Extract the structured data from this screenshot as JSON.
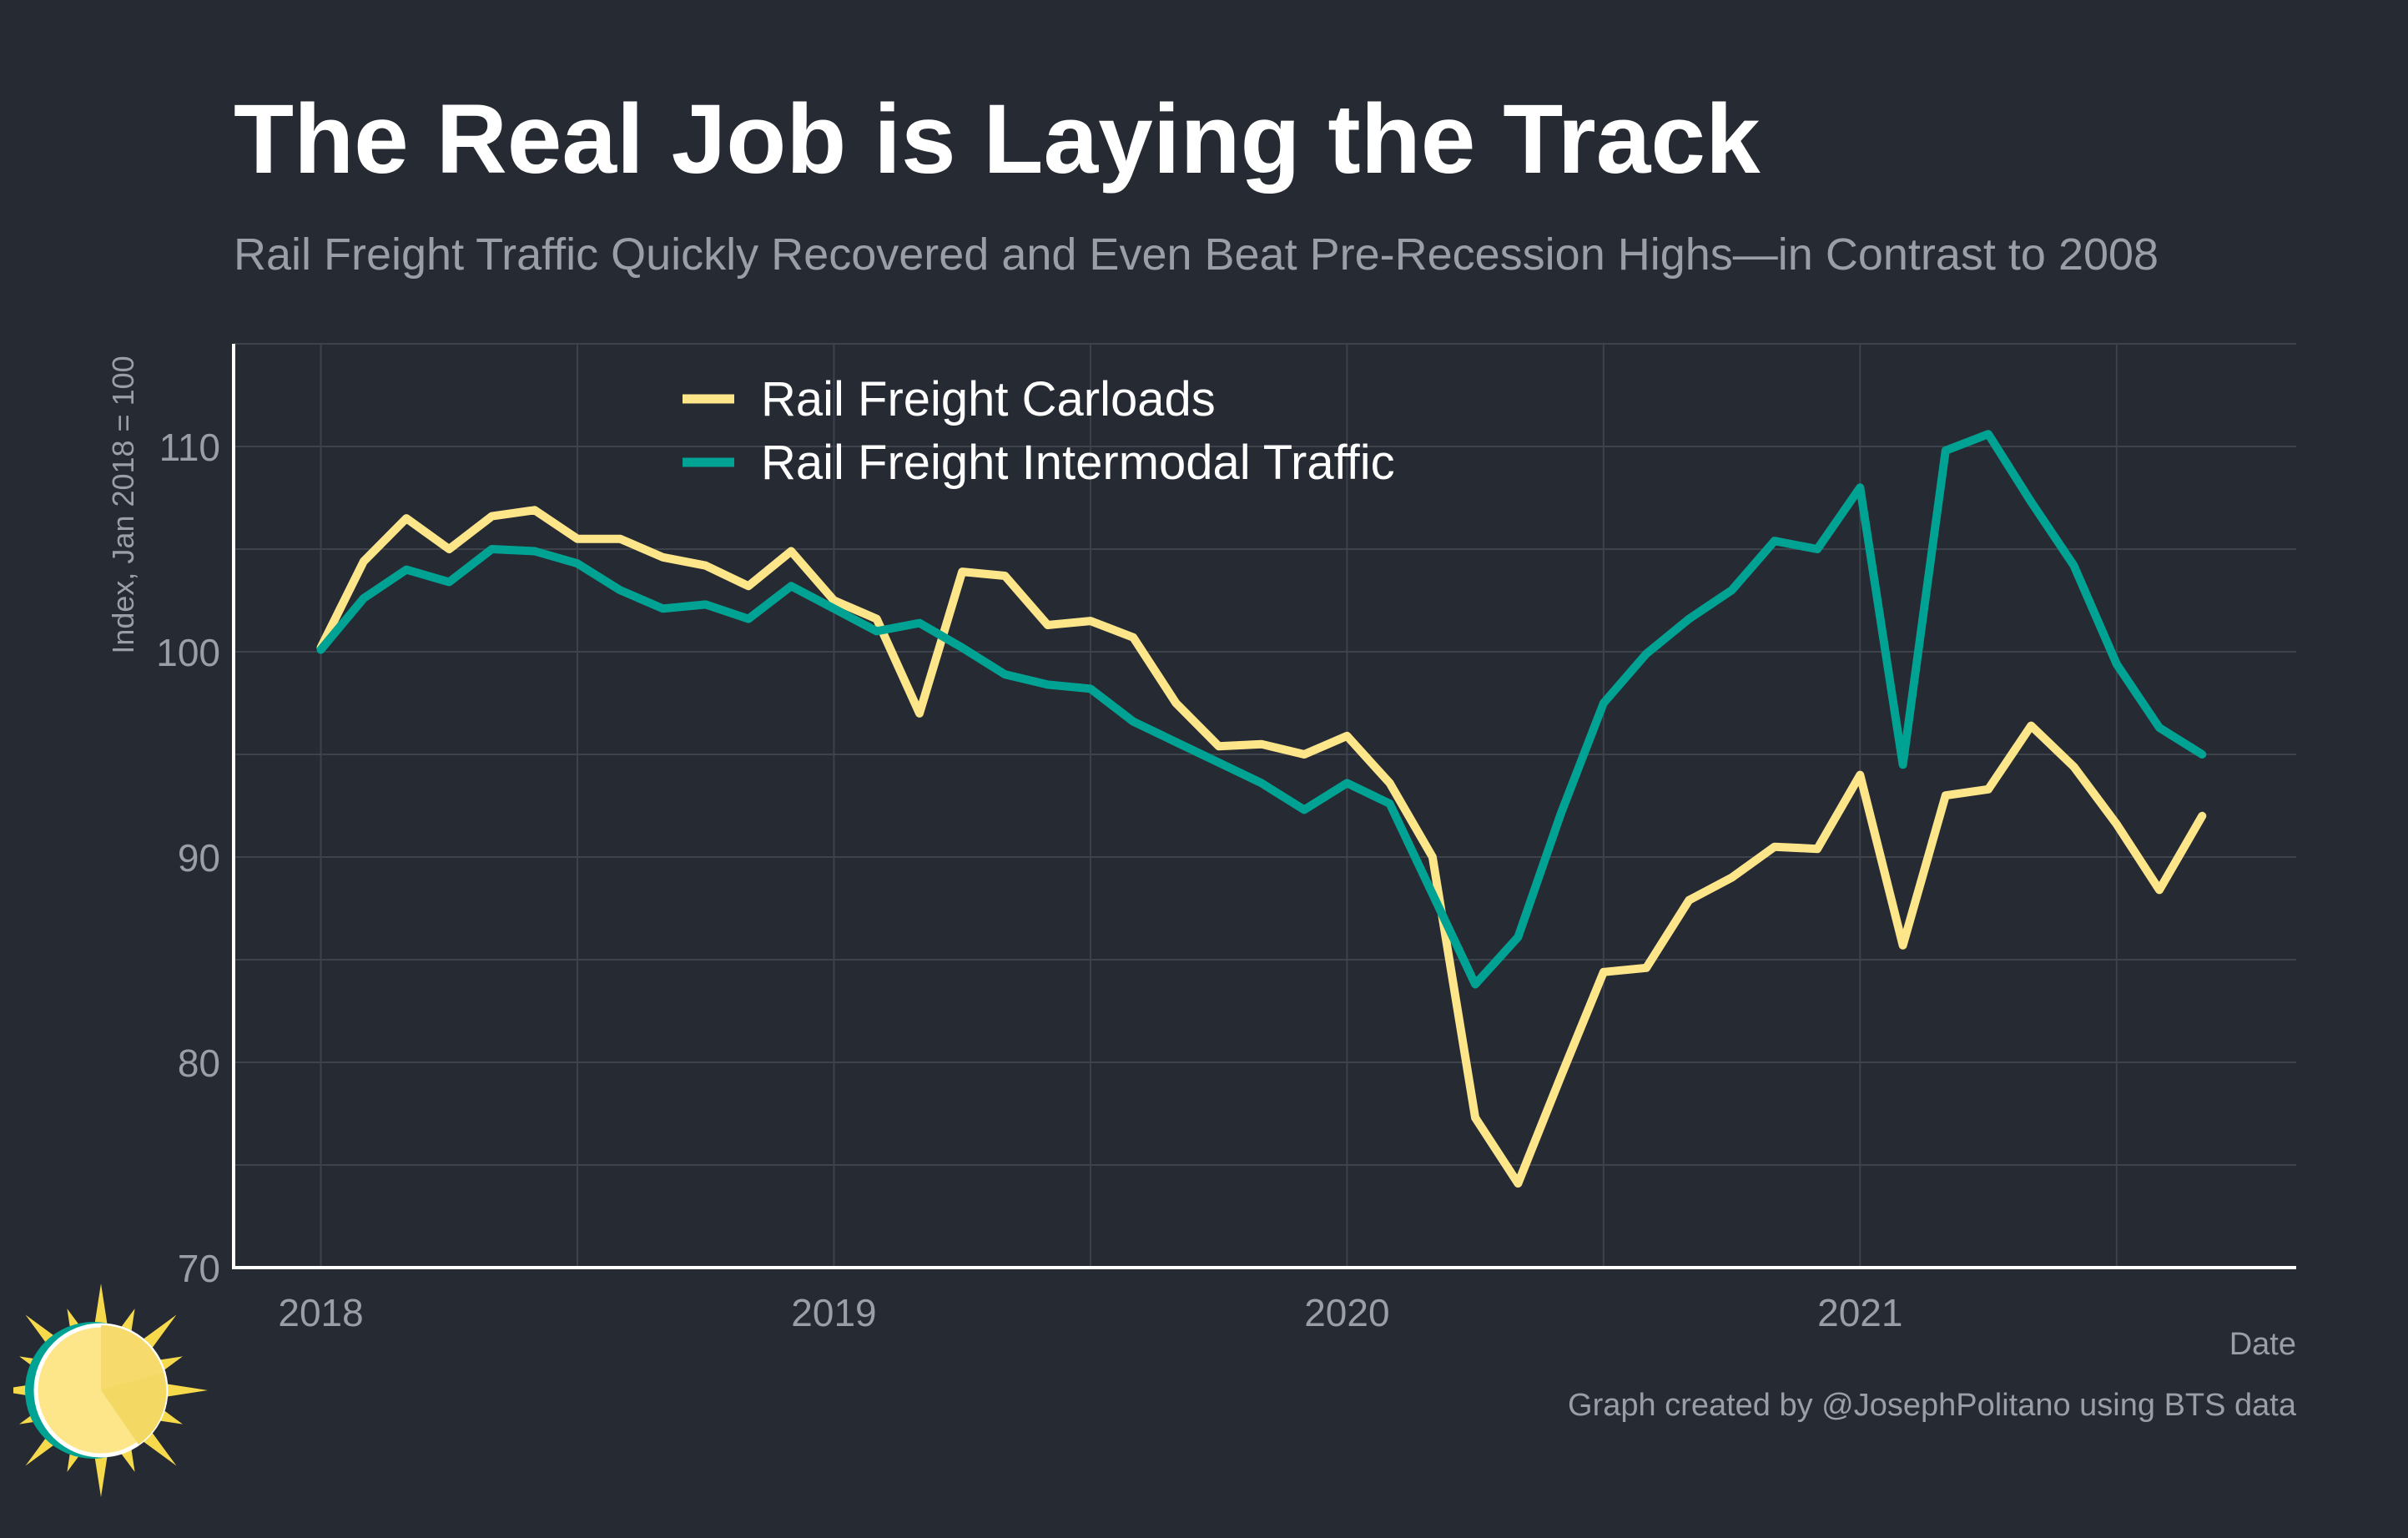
{
  "header": {
    "title": "The Real Job is Laying the Track",
    "subtitle": "Rail Freight Traffic Quickly Recovered and Even Beat Pre-Recession Highs—in Contrast to 2008"
  },
  "footer": {
    "caption": "Graph created by @JosephPolitano using BTS data"
  },
  "colors": {
    "background": "#252a33",
    "grid": "#3d424b",
    "axis": "#ffffff",
    "tick_text": "#9a9ea6",
    "carloads": "#fde68a",
    "intermodal": "#00a393"
  },
  "chart_data": {
    "type": "line",
    "xlabel": "Date",
    "ylabel": "Index, Jan 2018 = 100",
    "xlim": [
      2017.83,
      2021.85
    ],
    "ylim": [
      70,
      115
    ],
    "x_ticks": [
      2018,
      2019,
      2020,
      2021
    ],
    "x_tick_labels": [
      "2018",
      "2019",
      "2020",
      "2021"
    ],
    "y_ticks": [
      70,
      80,
      90,
      100,
      110
    ],
    "y_tick_labels": [
      "70",
      "80",
      "90",
      "100",
      "110"
    ],
    "grid": true,
    "legend_position": "top-left",
    "x_start": "2018-01",
    "x_step": "month",
    "series": [
      {
        "name": "Rail Freight Carloads",
        "color_key": "carloads",
        "values": [
          100.2,
          104.4,
          106.5,
          105.0,
          106.6,
          106.9,
          105.5,
          105.5,
          104.6,
          104.2,
          103.2,
          104.9,
          102.5,
          101.6,
          97.0,
          103.9,
          103.7,
          101.3,
          101.5,
          100.7,
          97.5,
          95.4,
          95.5,
          95.0,
          95.9,
          93.6,
          90.0,
          77.3,
          74.1,
          79.3,
          84.4,
          84.6,
          87.9,
          89.0,
          90.5,
          90.4,
          94.0,
          85.7,
          93.0,
          93.3,
          96.4,
          94.4,
          91.6,
          88.4,
          92.0
        ]
      },
      {
        "name": "Rail Freight Intermodal Traffic",
        "color_key": "intermodal",
        "values": [
          100.1,
          102.6,
          104.0,
          103.4,
          105.0,
          104.9,
          104.3,
          103.0,
          102.1,
          102.3,
          101.6,
          103.2,
          102.1,
          101.0,
          101.4,
          100.2,
          98.9,
          98.4,
          98.2,
          96.6,
          95.6,
          94.6,
          93.6,
          92.3,
          93.6,
          92.6,
          88.2,
          83.8,
          86.1,
          92.1,
          97.5,
          99.9,
          101.6,
          103.0,
          105.4,
          105.0,
          108.0,
          94.5,
          109.8,
          110.6,
          107.3,
          104.2,
          99.4,
          96.3,
          95.0
        ]
      }
    ]
  }
}
